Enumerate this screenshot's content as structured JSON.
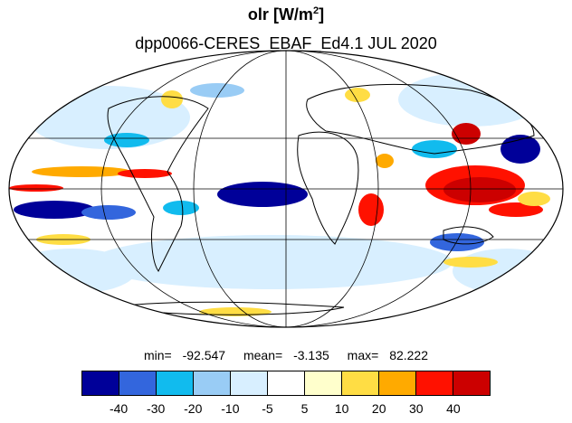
{
  "title": {
    "variable": "olr",
    "unit_prefix": "W/m",
    "unit_exp": "2",
    "subtitle": "dpp0066-CERES_EBAF_Ed4.1  JUL 2020"
  },
  "stats": {
    "min_label": "min=",
    "min_value": "-92.547",
    "mean_label": "mean=",
    "mean_value": "-3.135",
    "max_label": "max=",
    "max_value": "82.222"
  },
  "colorbar": {
    "colors": [
      "#000099",
      "#3366dd",
      "#11bbee",
      "#99ccf5",
      "#d8efff",
      "#ffffff",
      "#ffffcc",
      "#ffdd44",
      "#ffaa00",
      "#ff1100",
      "#cc0000"
    ],
    "ticks": [
      "-40",
      "-30",
      "-20",
      "-10",
      "-5",
      "5",
      "10",
      "20",
      "30",
      "40"
    ]
  },
  "map": {
    "projection": "Mollweide",
    "ocean_background": "#ffffff",
    "grid_color": "#000000"
  }
}
